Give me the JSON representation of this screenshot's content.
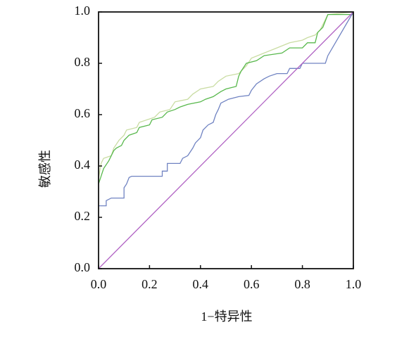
{
  "chart_data": {
    "type": "line",
    "x_label": "1−特异性",
    "y_label": "敏感性",
    "xlim": [
      0,
      1
    ],
    "ylim": [
      0,
      1
    ],
    "xticks": [
      {
        "value": 0,
        "label": "0.0"
      },
      {
        "value": 0.2,
        "label": "0.2"
      },
      {
        "value": 0.4,
        "label": "0.4"
      },
      {
        "value": 0.6,
        "label": "0.6"
      },
      {
        "value": 0.8,
        "label": "0.8"
      },
      {
        "value": 1,
        "label": "1.0"
      }
    ],
    "yticks": [
      {
        "value": 0,
        "label": "0.0"
      },
      {
        "value": 0.2,
        "label": "0.2"
      },
      {
        "value": 0.4,
        "label": "0.4"
      },
      {
        "value": 0.6,
        "label": "0.6"
      },
      {
        "value": 0.8,
        "label": "0.8"
      },
      {
        "value": 1,
        "label": "1.0"
      }
    ],
    "series": [
      {
        "color": "#c9dca2",
        "x": [
          0,
          0.01,
          0.02,
          0.05,
          0.06,
          0.08,
          0.1,
          0.11,
          0.15,
          0.16,
          0.22,
          0.24,
          0.28,
          0.3,
          0.35,
          0.37,
          0.4,
          0.45,
          0.47,
          0.5,
          0.55,
          0.58,
          0.6,
          0.65,
          0.7,
          0.75,
          0.8,
          0.82,
          0.85,
          0.87,
          0.9,
          1
        ],
        "values": [
          0.35,
          0.41,
          0.43,
          0.44,
          0.47,
          0.5,
          0.52,
          0.54,
          0.55,
          0.57,
          0.59,
          0.61,
          0.62,
          0.65,
          0.66,
          0.68,
          0.7,
          0.71,
          0.73,
          0.75,
          0.76,
          0.79,
          0.82,
          0.84,
          0.86,
          0.88,
          0.89,
          0.9,
          0.91,
          0.93,
          0.99,
          1
        ]
      },
      {
        "color": "#58b84c",
        "x": [
          0,
          0.01,
          0.02,
          0.04,
          0.05,
          0.06,
          0.07,
          0.09,
          0.1,
          0.12,
          0.15,
          0.16,
          0.2,
          0.21,
          0.25,
          0.27,
          0.3,
          0.32,
          0.35,
          0.4,
          0.42,
          0.45,
          0.48,
          0.5,
          0.54,
          0.55,
          0.56,
          0.58,
          0.62,
          0.65,
          0.72,
          0.75,
          0.8,
          0.82,
          0.85,
          0.86,
          0.88,
          0.9,
          1
        ],
        "values": [
          0.33,
          0.36,
          0.39,
          0.42,
          0.44,
          0.46,
          0.47,
          0.48,
          0.5,
          0.52,
          0.53,
          0.55,
          0.56,
          0.58,
          0.59,
          0.61,
          0.62,
          0.63,
          0.64,
          0.65,
          0.66,
          0.67,
          0.69,
          0.7,
          0.71,
          0.75,
          0.77,
          0.8,
          0.81,
          0.83,
          0.84,
          0.86,
          0.86,
          0.88,
          0.88,
          0.92,
          0.94,
          0.99,
          0.99
        ]
      },
      {
        "color": "#7083c2",
        "x": [
          0,
          0.03,
          0.03,
          0.05,
          0.1,
          0.1,
          0.11,
          0.12,
          0.13,
          0.25,
          0.25,
          0.27,
          0.27,
          0.32,
          0.33,
          0.35,
          0.37,
          0.38,
          0.4,
          0.41,
          0.43,
          0.45,
          0.46,
          0.47,
          0.48,
          0.5,
          0.51,
          0.55,
          0.59,
          0.6,
          0.62,
          0.65,
          0.67,
          0.7,
          0.74,
          0.75,
          0.79,
          0.8,
          0.89,
          0.9,
          1
        ],
        "values": [
          0.245,
          0.245,
          0.265,
          0.275,
          0.275,
          0.315,
          0.33,
          0.355,
          0.36,
          0.36,
          0.38,
          0.38,
          0.41,
          0.41,
          0.43,
          0.44,
          0.47,
          0.49,
          0.51,
          0.54,
          0.56,
          0.57,
          0.6,
          0.62,
          0.645,
          0.655,
          0.66,
          0.67,
          0.675,
          0.695,
          0.72,
          0.74,
          0.75,
          0.76,
          0.76,
          0.78,
          0.78,
          0.8,
          0.8,
          0.83,
          1
        ]
      },
      {
        "color": "#b163c4",
        "x": [
          0,
          1
        ],
        "values": [
          0,
          1
        ]
      }
    ]
  }
}
